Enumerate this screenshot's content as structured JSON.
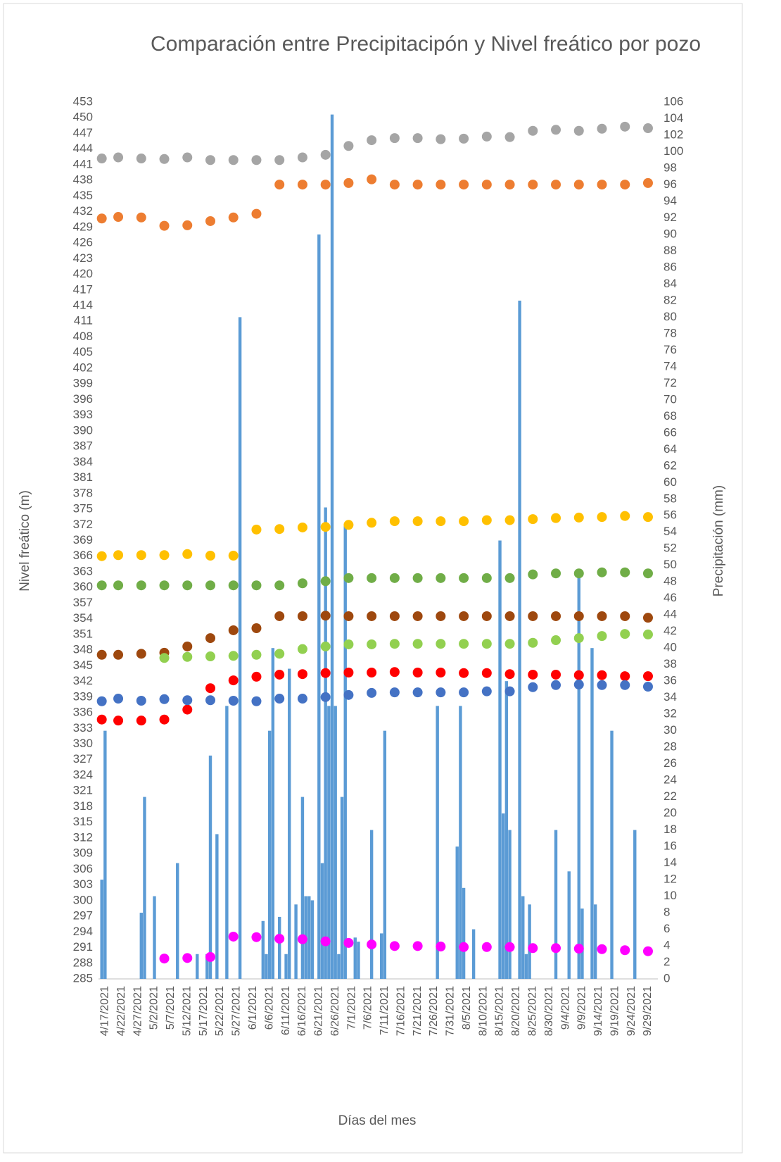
{
  "chart_data": {
    "type": "scatter",
    "title": "Comparación entre Precipitacipón y Nivel freático por pozo",
    "x_label": "Días del mes",
    "y_label": "Nivel freático (m)",
    "y2_label": "Precipitación (mm)",
    "xlim": [
      "4/15/2021",
      "10/2/2021"
    ],
    "xticks": [
      "4/17/2021",
      "4/22/2021",
      "4/27/2021",
      "5/2/2021",
      "5/7/2021",
      "5/12/2021",
      "5/17/2021",
      "5/22/2021",
      "5/27/2021",
      "6/1/2021",
      "6/6/2021",
      "6/11/2021",
      "6/16/2021",
      "6/21/2021",
      "6/26/2021",
      "7/1/2021",
      "7/6/2021",
      "7/11/2021",
      "7/16/2021",
      "7/21/2021",
      "7/26/2021",
      "7/31/2021",
      "8/5/2021",
      "8/10/2021",
      "8/15/2021",
      "8/20/2021",
      "8/25/2021",
      "8/30/2021",
      "9/4/2021",
      "9/9/2021",
      "9/14/2021",
      "9/19/2021",
      "9/24/2021",
      "9/29/2021"
    ],
    "ylim": [
      285,
      453
    ],
    "yticks": [
      285,
      288,
      291,
      294,
      297,
      300,
      303,
      306,
      309,
      312,
      315,
      318,
      321,
      324,
      327,
      330,
      333,
      336,
      339,
      342,
      345,
      348,
      351,
      354,
      357,
      360,
      363,
      366,
      369,
      372,
      375,
      378,
      381,
      384,
      387,
      390,
      393,
      396,
      399,
      402,
      405,
      408,
      411,
      414,
      417,
      420,
      423,
      426,
      429,
      432,
      435,
      438,
      441,
      444,
      447,
      450,
      453
    ],
    "y2lim": [
      0,
      106
    ],
    "y2ticks": [
      0,
      2,
      4,
      6,
      8,
      10,
      12,
      14,
      16,
      18,
      20,
      22,
      24,
      26,
      28,
      30,
      32,
      34,
      36,
      38,
      40,
      42,
      44,
      46,
      48,
      50,
      52,
      54,
      56,
      58,
      60,
      62,
      64,
      66,
      68,
      70,
      72,
      74,
      76,
      78,
      80,
      82,
      84,
      86,
      88,
      90,
      92,
      94,
      96,
      98,
      100,
      102,
      104,
      106
    ],
    "grid": false,
    "bars": {
      "color": "#5b9bd5",
      "axis": "y2",
      "x": [
        "4/16/2021",
        "4/17/2021",
        "4/28/2021",
        "4/29/2021",
        "5/2/2021",
        "5/9/2021",
        "5/15/2021",
        "5/18/2021",
        "5/19/2021",
        "5/21/2021",
        "5/24/2021",
        "5/28/2021",
        "6/4/2021",
        "6/5/2021",
        "6/6/2021",
        "6/7/2021",
        "6/9/2021",
        "6/11/2021",
        "6/12/2021",
        "6/14/2021",
        "6/16/2021",
        "6/17/2021",
        "6/18/2021",
        "6/19/2021",
        "6/21/2021",
        "6/22/2021",
        "6/23/2021",
        "6/24/2021",
        "6/25/2021",
        "6/26/2021",
        "6/27/2021",
        "6/28/2021",
        "6/29/2021",
        "7/2/2021",
        "7/3/2021",
        "7/7/2021",
        "7/10/2021",
        "7/11/2021",
        "7/27/2021",
        "8/2/2021",
        "8/3/2021",
        "8/4/2021",
        "8/7/2021",
        "8/15/2021",
        "8/16/2021",
        "8/17/2021",
        "8/18/2021",
        "8/21/2021",
        "8/22/2021",
        "8/23/2021",
        "8/24/2021",
        "9/1/2021",
        "9/5/2021",
        "9/8/2021",
        "9/9/2021",
        "9/12/2021",
        "9/13/2021",
        "9/18/2021",
        "9/25/2021"
      ],
      "values": [
        12,
        30,
        8,
        22,
        10,
        14,
        3,
        3,
        27,
        17.5,
        33,
        80,
        7,
        3,
        30,
        40,
        7.5,
        3,
        37.5,
        9,
        22,
        10,
        10,
        9.5,
        90,
        14,
        57,
        33,
        104.5,
        33,
        3,
        22,
        55,
        5,
        4.5,
        18,
        5.5,
        30,
        33,
        16,
        33,
        11,
        6,
        53,
        20,
        36,
        18,
        82,
        10,
        3,
        9,
        18,
        13,
        48.5,
        8.5,
        40,
        9,
        30,
        18
      ]
    },
    "x": [
      "4/16/2021",
      "4/21/2021",
      "4/28/2021",
      "5/5/2021",
      "5/12/2021",
      "5/19/2021",
      "5/26/2021",
      "6/2/2021",
      "6/9/2021",
      "6/16/2021",
      "6/23/2021",
      "6/30/2021",
      "7/7/2021",
      "7/14/2021",
      "7/21/2021",
      "7/28/2021",
      "8/4/2021",
      "8/11/2021",
      "8/18/2021",
      "8/25/2021",
      "9/1/2021",
      "9/8/2021",
      "9/15/2021",
      "9/22/2021",
      "9/29/2021"
    ],
    "series": [
      {
        "color": "#a5a5a5",
        "values": [
          442.2,
          442.4,
          442.2,
          442.1,
          442.4,
          441.9,
          441.9,
          441.9,
          441.9,
          442.4,
          442.9,
          444.6,
          445.7,
          446.1,
          446.1,
          445.9,
          446.0,
          446.4,
          446.3,
          447.5,
          447.7,
          447.5,
          447.9,
          448.3,
          448.0
        ]
      },
      {
        "color": "#ed7d31",
        "values": [
          430.7,
          431.0,
          430.9,
          429.3,
          429.4,
          430.2,
          430.9,
          431.6,
          437.2,
          437.2,
          437.2,
          437.5,
          438.2,
          437.2,
          437.2,
          437.2,
          437.2,
          437.2,
          437.2,
          437.2,
          437.2,
          437.2,
          437.2,
          437.2,
          437.5
        ]
      },
      {
        "color": "#ffc000",
        "values": [
          366.0,
          366.2,
          366.2,
          366.2,
          366.4,
          366.1,
          366.1,
          371.1,
          371.2,
          371.5,
          371.6,
          372.0,
          372.4,
          372.7,
          372.7,
          372.7,
          372.7,
          372.9,
          372.9,
          373.1,
          373.3,
          373.4,
          373.5,
          373.7,
          373.5
        ]
      },
      {
        "color": "#70ad47",
        "values": [
          360.4,
          360.4,
          360.4,
          360.4,
          360.4,
          360.4,
          360.4,
          360.4,
          360.4,
          360.8,
          361.2,
          361.8,
          361.8,
          361.8,
          361.8,
          361.8,
          361.8,
          361.8,
          361.8,
          362.5,
          362.7,
          362.7,
          362.9,
          362.9,
          362.7
        ]
      },
      {
        "color": "#9e480e",
        "values": [
          347.1,
          347.1,
          347.3,
          347.5,
          348.7,
          350.3,
          351.8,
          352.2,
          354.5,
          354.5,
          354.6,
          354.5,
          354.5,
          354.5,
          354.5,
          354.5,
          354.5,
          354.5,
          354.5,
          354.5,
          354.5,
          354.5,
          354.5,
          354.5,
          354.2
        ]
      },
      {
        "color": "#92d050",
        "values": [
          null,
          null,
          null,
          346.5,
          346.7,
          346.8,
          346.9,
          347.1,
          347.3,
          348.2,
          348.7,
          349.1,
          349.1,
          349.2,
          349.2,
          349.2,
          349.2,
          349.2,
          349.2,
          349.4,
          349.9,
          350.3,
          350.7,
          351.1,
          351.0
        ]
      },
      {
        "color": "#ff0000",
        "values": [
          334.7,
          334.5,
          334.5,
          334.7,
          336.6,
          340.7,
          342.2,
          342.9,
          343.3,
          343.4,
          343.6,
          343.7,
          343.7,
          343.8,
          343.7,
          343.7,
          343.6,
          343.6,
          343.4,
          343.3,
          343.3,
          343.2,
          343.2,
          343.0,
          343.0
        ]
      },
      {
        "color": "#4472c4",
        "values": [
          338.2,
          338.7,
          338.3,
          338.6,
          338.4,
          338.4,
          338.3,
          338.2,
          338.7,
          338.7,
          339.0,
          339.4,
          339.8,
          339.9,
          339.9,
          339.9,
          339.9,
          340.1,
          340.1,
          340.9,
          341.3,
          341.4,
          341.3,
          341.3,
          341.0
        ]
      },
      {
        "color": "#ff00ff",
        "values": [
          null,
          null,
          null,
          288.9,
          289.0,
          289.2,
          293.1,
          293.0,
          292.7,
          292.6,
          292.2,
          291.9,
          291.6,
          291.3,
          291.3,
          291.2,
          291.1,
          291.1,
          291.1,
          290.9,
          290.9,
          290.8,
          290.7,
          290.5,
          290.3
        ]
      }
    ]
  }
}
